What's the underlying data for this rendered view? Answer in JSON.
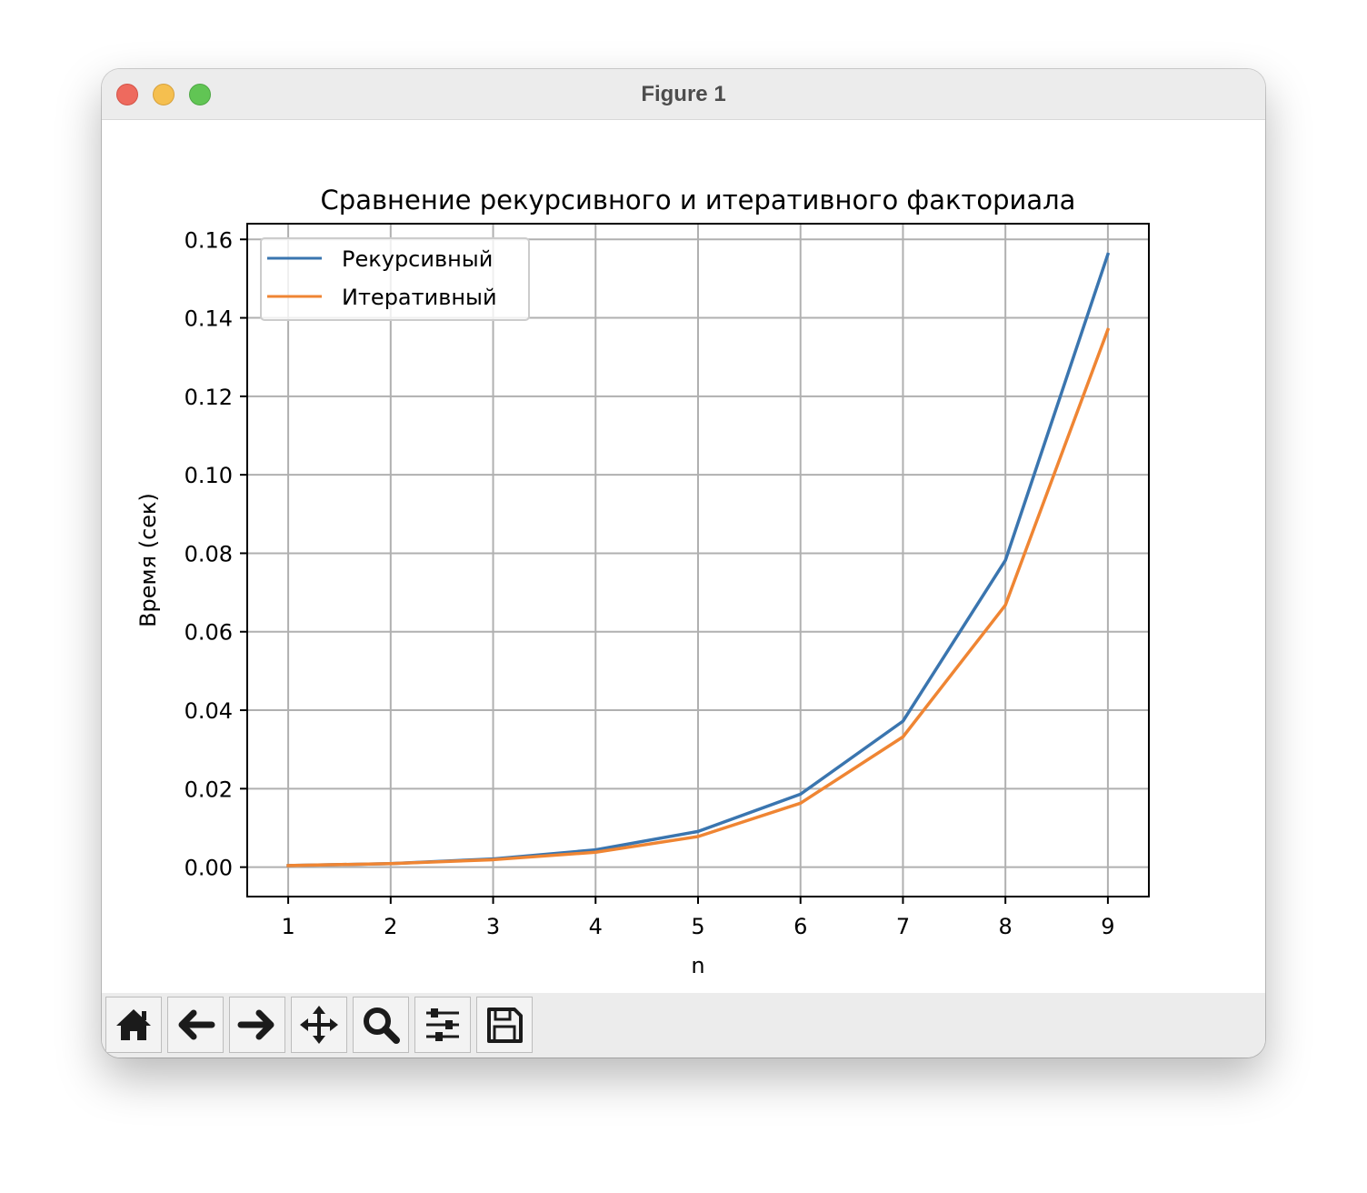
{
  "window": {
    "title": "Figure 1"
  },
  "chart_data": {
    "type": "line",
    "title": "Сравнение рекурсивного и итеративного факториала",
    "xlabel": "n",
    "ylabel": "Время (сек)",
    "x": [
      1,
      2,
      3,
      4,
      5,
      6,
      7,
      8,
      9
    ],
    "xlim": [
      0.6,
      9.4
    ],
    "ylim": [
      -0.0075,
      0.164
    ],
    "xticks": [
      "1",
      "2",
      "3",
      "4",
      "5",
      "6",
      "7",
      "8",
      "9"
    ],
    "yticks": [
      "0.00",
      "0.02",
      "0.04",
      "0.06",
      "0.08",
      "0.10",
      "0.12",
      "0.14",
      "0.16"
    ],
    "grid": true,
    "legend_position": "upper-left",
    "series": [
      {
        "name": "Рекурсивный",
        "color": "#3a75af",
        "values": [
          0.0004,
          0.0009,
          0.0021,
          0.0044,
          0.0091,
          0.0186,
          0.0372,
          0.0782,
          0.1562
        ]
      },
      {
        "name": "Итеративный",
        "color": "#ef8533",
        "values": [
          0.0004,
          0.0009,
          0.0019,
          0.0038,
          0.0078,
          0.0163,
          0.0332,
          0.0668,
          0.137
        ]
      }
    ]
  },
  "toolbar": {
    "buttons": [
      {
        "name": "home-button",
        "icon": "home-icon"
      },
      {
        "name": "back-button",
        "icon": "arrow-left-icon"
      },
      {
        "name": "forward-button",
        "icon": "arrow-right-icon"
      },
      {
        "name": "pan-button",
        "icon": "move-icon"
      },
      {
        "name": "zoom-button",
        "icon": "magnifier-icon"
      },
      {
        "name": "configure-subplots-button",
        "icon": "sliders-icon"
      },
      {
        "name": "save-button",
        "icon": "floppy-disk-icon"
      }
    ]
  }
}
